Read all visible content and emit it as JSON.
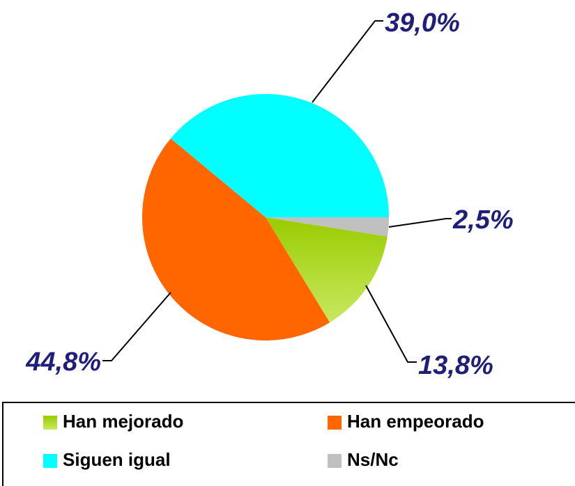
{
  "chart_data": {
    "type": "pie",
    "categories": [
      "Han mejorado",
      "Han empeorado",
      "Siguen igual",
      "Ns/Nc"
    ],
    "values": [
      13.8,
      44.8,
      39.0,
      2.5
    ],
    "value_labels": [
      "13,8%",
      "44,8%",
      "39,0%",
      "2,5%"
    ],
    "colors": [
      "#99cc00",
      "#ff6600",
      "#00ffff",
      "#c0c0c0"
    ],
    "legend": "bottom"
  }
}
